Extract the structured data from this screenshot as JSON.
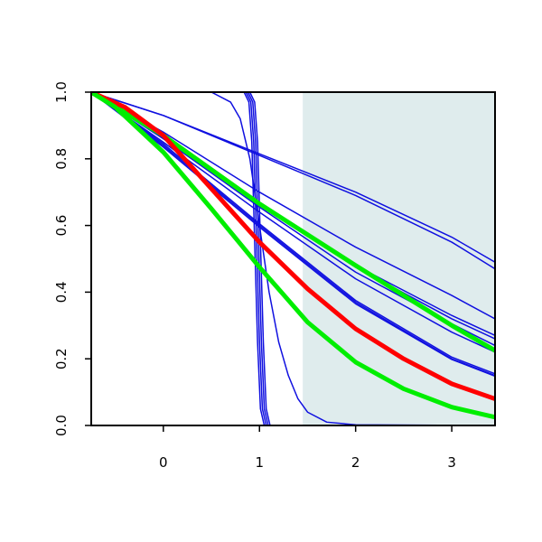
{
  "chart_data": {
    "type": "line",
    "title": "",
    "xlabel": "",
    "ylabel": "",
    "xlim": [
      -0.75,
      3.45
    ],
    "ylim": [
      0,
      1
    ],
    "x_ticks": [
      {
        "value": 0,
        "label": "0"
      },
      {
        "value": 1,
        "label": "1"
      },
      {
        "value": 2,
        "label": "2"
      },
      {
        "value": 3,
        "label": "3"
      }
    ],
    "y_ticks": [
      {
        "value": 0.0,
        "label": "0.0"
      },
      {
        "value": 0.2,
        "label": "0.2"
      },
      {
        "value": 0.4,
        "label": "0.4"
      },
      {
        "value": 0.6,
        "label": "0.6"
      },
      {
        "value": 0.8,
        "label": "0.8"
      },
      {
        "value": 1.0,
        "label": "1.0"
      }
    ],
    "shaded_region": {
      "x_from": 1.45,
      "x_to": 3.45,
      "color": "#dfeced"
    },
    "grid": false,
    "legend": "none",
    "colors": {
      "blue": "#1010e0",
      "red": "#ff0000",
      "green": "#00ee00"
    },
    "series": [
      {
        "color": "#1010e0",
        "width": 1.5,
        "points": [
          [
            -0.75,
            1.0
          ],
          [
            0,
            0.93
          ],
          [
            1,
            0.815
          ],
          [
            2,
            0.7
          ],
          [
            3,
            0.565
          ],
          [
            3.45,
            0.49
          ]
        ]
      },
      {
        "color": "#1010e0",
        "width": 1.5,
        "points": [
          [
            -0.75,
            1.0
          ],
          [
            0,
            0.93
          ],
          [
            1,
            0.81
          ],
          [
            2,
            0.69
          ],
          [
            3,
            0.55
          ],
          [
            3.45,
            0.47
          ]
        ]
      },
      {
        "color": "#1010e0",
        "width": 1.5,
        "points": [
          [
            -0.75,
            1.0
          ],
          [
            0,
            0.88
          ],
          [
            1,
            0.7
          ],
          [
            2,
            0.535
          ],
          [
            3,
            0.39
          ],
          [
            3.45,
            0.32
          ]
        ]
      },
      {
        "color": "#1010e0",
        "width": 1.5,
        "points": [
          [
            -0.75,
            1.0
          ],
          [
            0,
            0.87
          ],
          [
            1,
            0.67
          ],
          [
            2,
            0.48
          ],
          [
            3,
            0.33
          ],
          [
            3.45,
            0.27
          ]
        ]
      },
      {
        "color": "#1010e0",
        "width": 1.5,
        "points": [
          [
            -0.75,
            1.0
          ],
          [
            0,
            0.865
          ],
          [
            1,
            0.665
          ],
          [
            2,
            0.475
          ],
          [
            3,
            0.32
          ],
          [
            3.45,
            0.26
          ]
        ]
      },
      {
        "color": "#1010e0",
        "width": 1.5,
        "points": [
          [
            -0.75,
            1.0
          ],
          [
            0,
            0.86
          ],
          [
            1,
            0.655
          ],
          [
            2,
            0.46
          ],
          [
            3,
            0.305
          ],
          [
            3.45,
            0.24
          ]
        ]
      },
      {
        "color": "#1010e0",
        "width": 1.5,
        "points": [
          [
            -0.75,
            1.0
          ],
          [
            0,
            0.85
          ],
          [
            1,
            0.64
          ],
          [
            2,
            0.44
          ],
          [
            3,
            0.28
          ],
          [
            3.45,
            0.22
          ]
        ]
      },
      {
        "color": "#1010e0",
        "width": 1.5,
        "points": [
          [
            -0.75,
            1.0
          ],
          [
            0,
            0.845
          ],
          [
            1,
            0.605
          ],
          [
            2,
            0.375
          ],
          [
            3,
            0.205
          ],
          [
            3.45,
            0.155
          ]
        ]
      },
      {
        "color": "#1010e0",
        "width": 1.5,
        "points": [
          [
            -0.75,
            1.0
          ],
          [
            0,
            0.84
          ],
          [
            1,
            0.6
          ],
          [
            2,
            0.37
          ],
          [
            3,
            0.2
          ],
          [
            3.45,
            0.15
          ]
        ]
      },
      {
        "color": "#1010e0",
        "width": 1.5,
        "points": [
          [
            -0.75,
            1.0
          ],
          [
            0,
            0.835
          ],
          [
            1,
            0.595
          ],
          [
            2,
            0.365
          ],
          [
            3,
            0.198
          ],
          [
            3.45,
            0.148
          ]
        ]
      },
      {
        "color": "#1010e0",
        "width": 1.5,
        "points": [
          [
            -0.75,
            1.0
          ],
          [
            0.5,
            1.0
          ],
          [
            0.7,
            0.97
          ],
          [
            0.8,
            0.92
          ],
          [
            0.9,
            0.8
          ],
          [
            1,
            0.6
          ],
          [
            1.1,
            0.4
          ],
          [
            1.2,
            0.25
          ],
          [
            1.3,
            0.15
          ],
          [
            1.4,
            0.08
          ],
          [
            1.5,
            0.04
          ],
          [
            1.7,
            0.01
          ],
          [
            2,
            0.002
          ],
          [
            3.45,
            0.0
          ]
        ]
      },
      {
        "color": "#1010e0",
        "width": 1.5,
        "points": [
          [
            -0.75,
            1.0
          ],
          [
            0.84,
            1.0
          ],
          [
            0.89,
            0.97
          ],
          [
            0.92,
            0.85
          ],
          [
            0.95,
            0.55
          ],
          [
            0.98,
            0.25
          ],
          [
            1.01,
            0.05
          ],
          [
            1.05,
            0.0
          ],
          [
            3.45,
            0.0
          ]
        ]
      },
      {
        "color": "#1010e0",
        "width": 1.5,
        "points": [
          [
            -0.75,
            1.0
          ],
          [
            0.86,
            1.0
          ],
          [
            0.91,
            0.97
          ],
          [
            0.94,
            0.85
          ],
          [
            0.97,
            0.55
          ],
          [
            1.0,
            0.25
          ],
          [
            1.03,
            0.05
          ],
          [
            1.07,
            0.0
          ],
          [
            3.45,
            0.0
          ]
        ]
      },
      {
        "color": "#1010e0",
        "width": 1.5,
        "points": [
          [
            -0.75,
            1.0
          ],
          [
            0.88,
            1.0
          ],
          [
            0.93,
            0.97
          ],
          [
            0.96,
            0.85
          ],
          [
            0.99,
            0.55
          ],
          [
            1.02,
            0.25
          ],
          [
            1.05,
            0.05
          ],
          [
            1.09,
            0.0
          ],
          [
            3.45,
            0.0
          ]
        ]
      },
      {
        "color": "#1010e0",
        "width": 1.5,
        "points": [
          [
            -0.75,
            1.0
          ],
          [
            0.9,
            1.0
          ],
          [
            0.95,
            0.97
          ],
          [
            0.98,
            0.85
          ],
          [
            1.01,
            0.55
          ],
          [
            1.04,
            0.25
          ],
          [
            1.07,
            0.05
          ],
          [
            1.11,
            0.0
          ],
          [
            3.45,
            0.0
          ]
        ]
      },
      {
        "color": "#00ee00",
        "width": 5,
        "points": [
          [
            -0.75,
            1.0
          ],
          [
            0,
            0.87
          ],
          [
            1,
            0.665
          ],
          [
            2,
            0.48
          ],
          [
            3,
            0.3
          ],
          [
            3.45,
            0.225
          ]
        ]
      },
      {
        "color": "#ff0000",
        "width": 5,
        "points": [
          [
            -0.75,
            1.0
          ],
          [
            -0.4,
            0.955
          ],
          [
            0,
            0.87
          ],
          [
            0.5,
            0.71
          ],
          [
            1,
            0.55
          ],
          [
            1.5,
            0.41
          ],
          [
            2,
            0.29
          ],
          [
            2.5,
            0.2
          ],
          [
            3,
            0.125
          ],
          [
            3.45,
            0.08
          ]
        ]
      },
      {
        "color": "#00ee00",
        "width": 5,
        "points": [
          [
            -0.75,
            1.0
          ],
          [
            -0.5,
            0.955
          ],
          [
            0,
            0.82
          ],
          [
            0.5,
            0.65
          ],
          [
            1,
            0.475
          ],
          [
            1.5,
            0.31
          ],
          [
            2,
            0.19
          ],
          [
            2.5,
            0.11
          ],
          [
            3,
            0.055
          ],
          [
            3.45,
            0.025
          ]
        ]
      }
    ]
  }
}
